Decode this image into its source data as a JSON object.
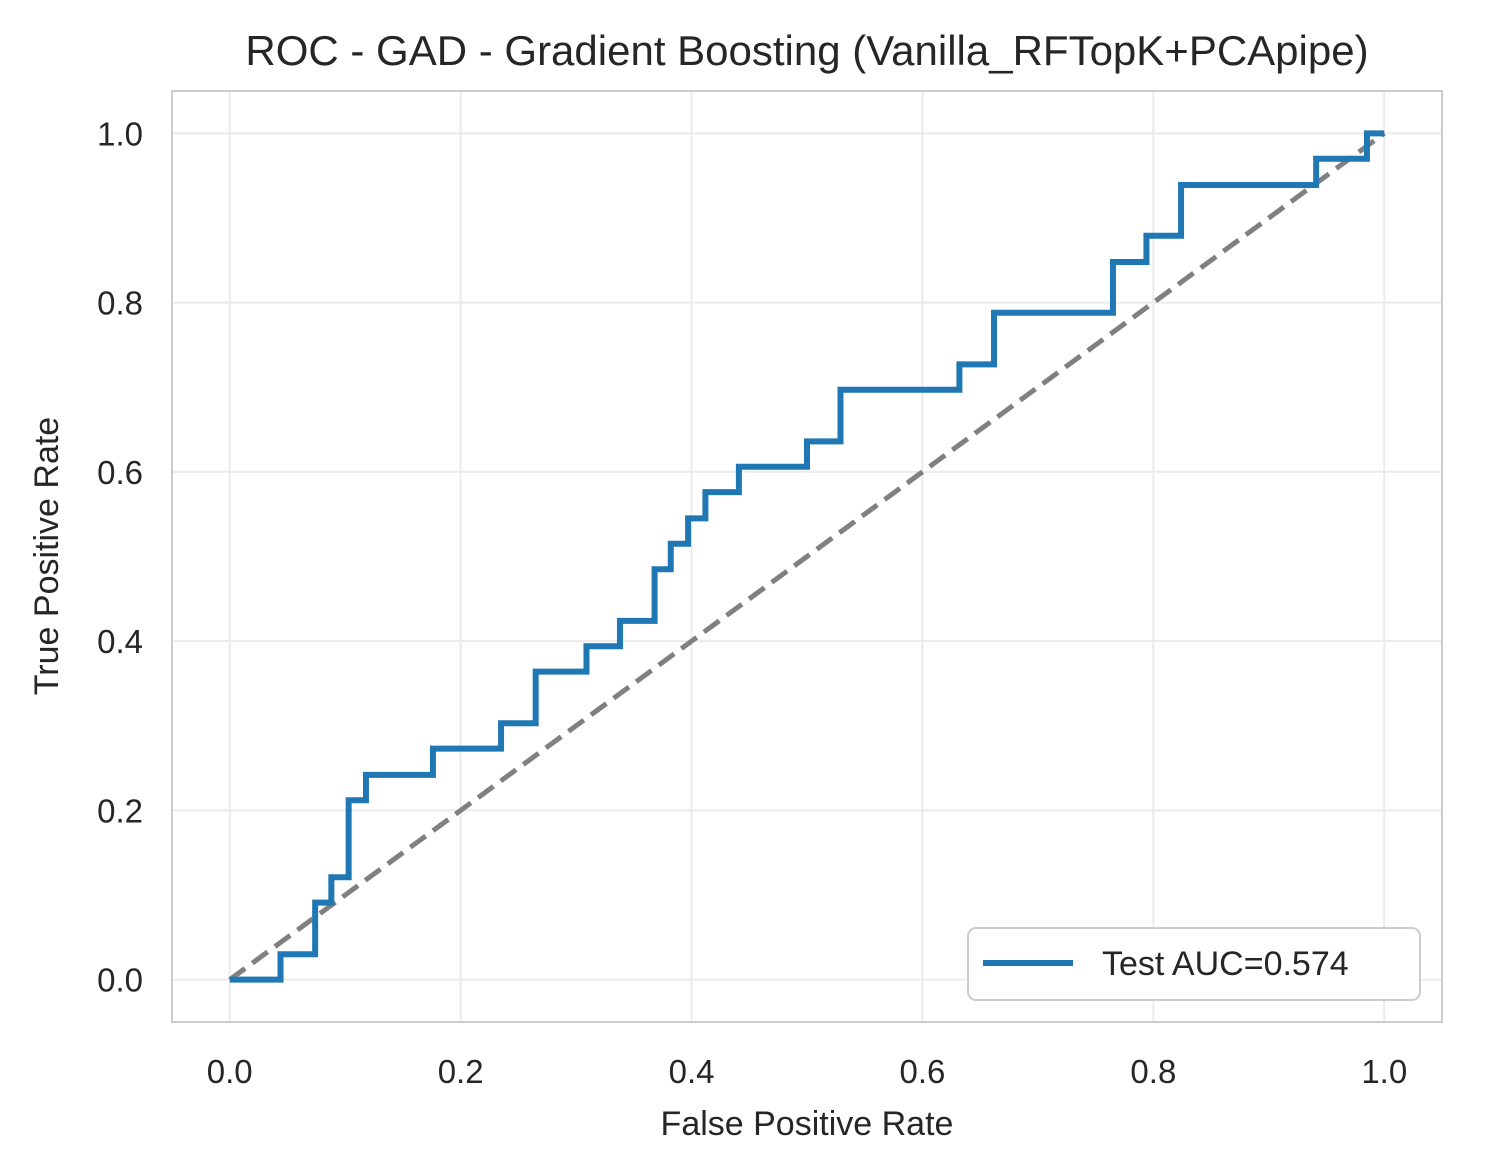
{
  "chart_data": {
    "type": "line",
    "title": "ROC - GAD - Gradient Boosting (Vanilla_RFTopK+PCApipe)",
    "xlabel": "False Positive Rate",
    "ylabel": "True Positive Rate",
    "xlim": [
      -0.05,
      1.05
    ],
    "ylim": [
      -0.05,
      1.05
    ],
    "x_ticks": [
      "0.0",
      "0.2",
      "0.4",
      "0.6",
      "0.8",
      "1.0"
    ],
    "y_ticks": [
      "0.0",
      "0.2",
      "0.4",
      "0.6",
      "0.8",
      "1.0"
    ],
    "grid": true,
    "legend_position": "bottom-right",
    "series": [
      {
        "name": "Test AUC=0.574",
        "color": "#1f77b4",
        "style": "solid",
        "x": [
          0.0,
          0.044,
          0.044,
          0.074,
          0.074,
          0.088,
          0.088,
          0.103,
          0.103,
          0.118,
          0.118,
          0.176,
          0.176,
          0.235,
          0.235,
          0.265,
          0.265,
          0.309,
          0.309,
          0.338,
          0.338,
          0.368,
          0.368,
          0.382,
          0.382,
          0.397,
          0.397,
          0.412,
          0.412,
          0.441,
          0.441,
          0.5,
          0.5,
          0.529,
          0.529,
          0.632,
          0.632,
          0.662,
          0.662,
          0.765,
          0.765,
          0.794,
          0.794,
          0.824,
          0.824,
          0.941,
          0.941,
          0.985,
          0.985,
          1.0
        ],
        "y": [
          0.0,
          0.0,
          0.03,
          0.03,
          0.091,
          0.091,
          0.121,
          0.121,
          0.212,
          0.212,
          0.242,
          0.242,
          0.273,
          0.273,
          0.303,
          0.303,
          0.364,
          0.364,
          0.394,
          0.394,
          0.424,
          0.424,
          0.485,
          0.485,
          0.515,
          0.515,
          0.545,
          0.545,
          0.576,
          0.576,
          0.606,
          0.606,
          0.636,
          0.636,
          0.697,
          0.697,
          0.727,
          0.727,
          0.788,
          0.788,
          0.848,
          0.848,
          0.879,
          0.879,
          0.939,
          0.939,
          0.97,
          0.97,
          1.0,
          1.0
        ]
      },
      {
        "color": "#808080",
        "style": "dashed",
        "x": [
          0.0,
          1.0
        ],
        "y": [
          0.0,
          1.0
        ]
      }
    ]
  }
}
